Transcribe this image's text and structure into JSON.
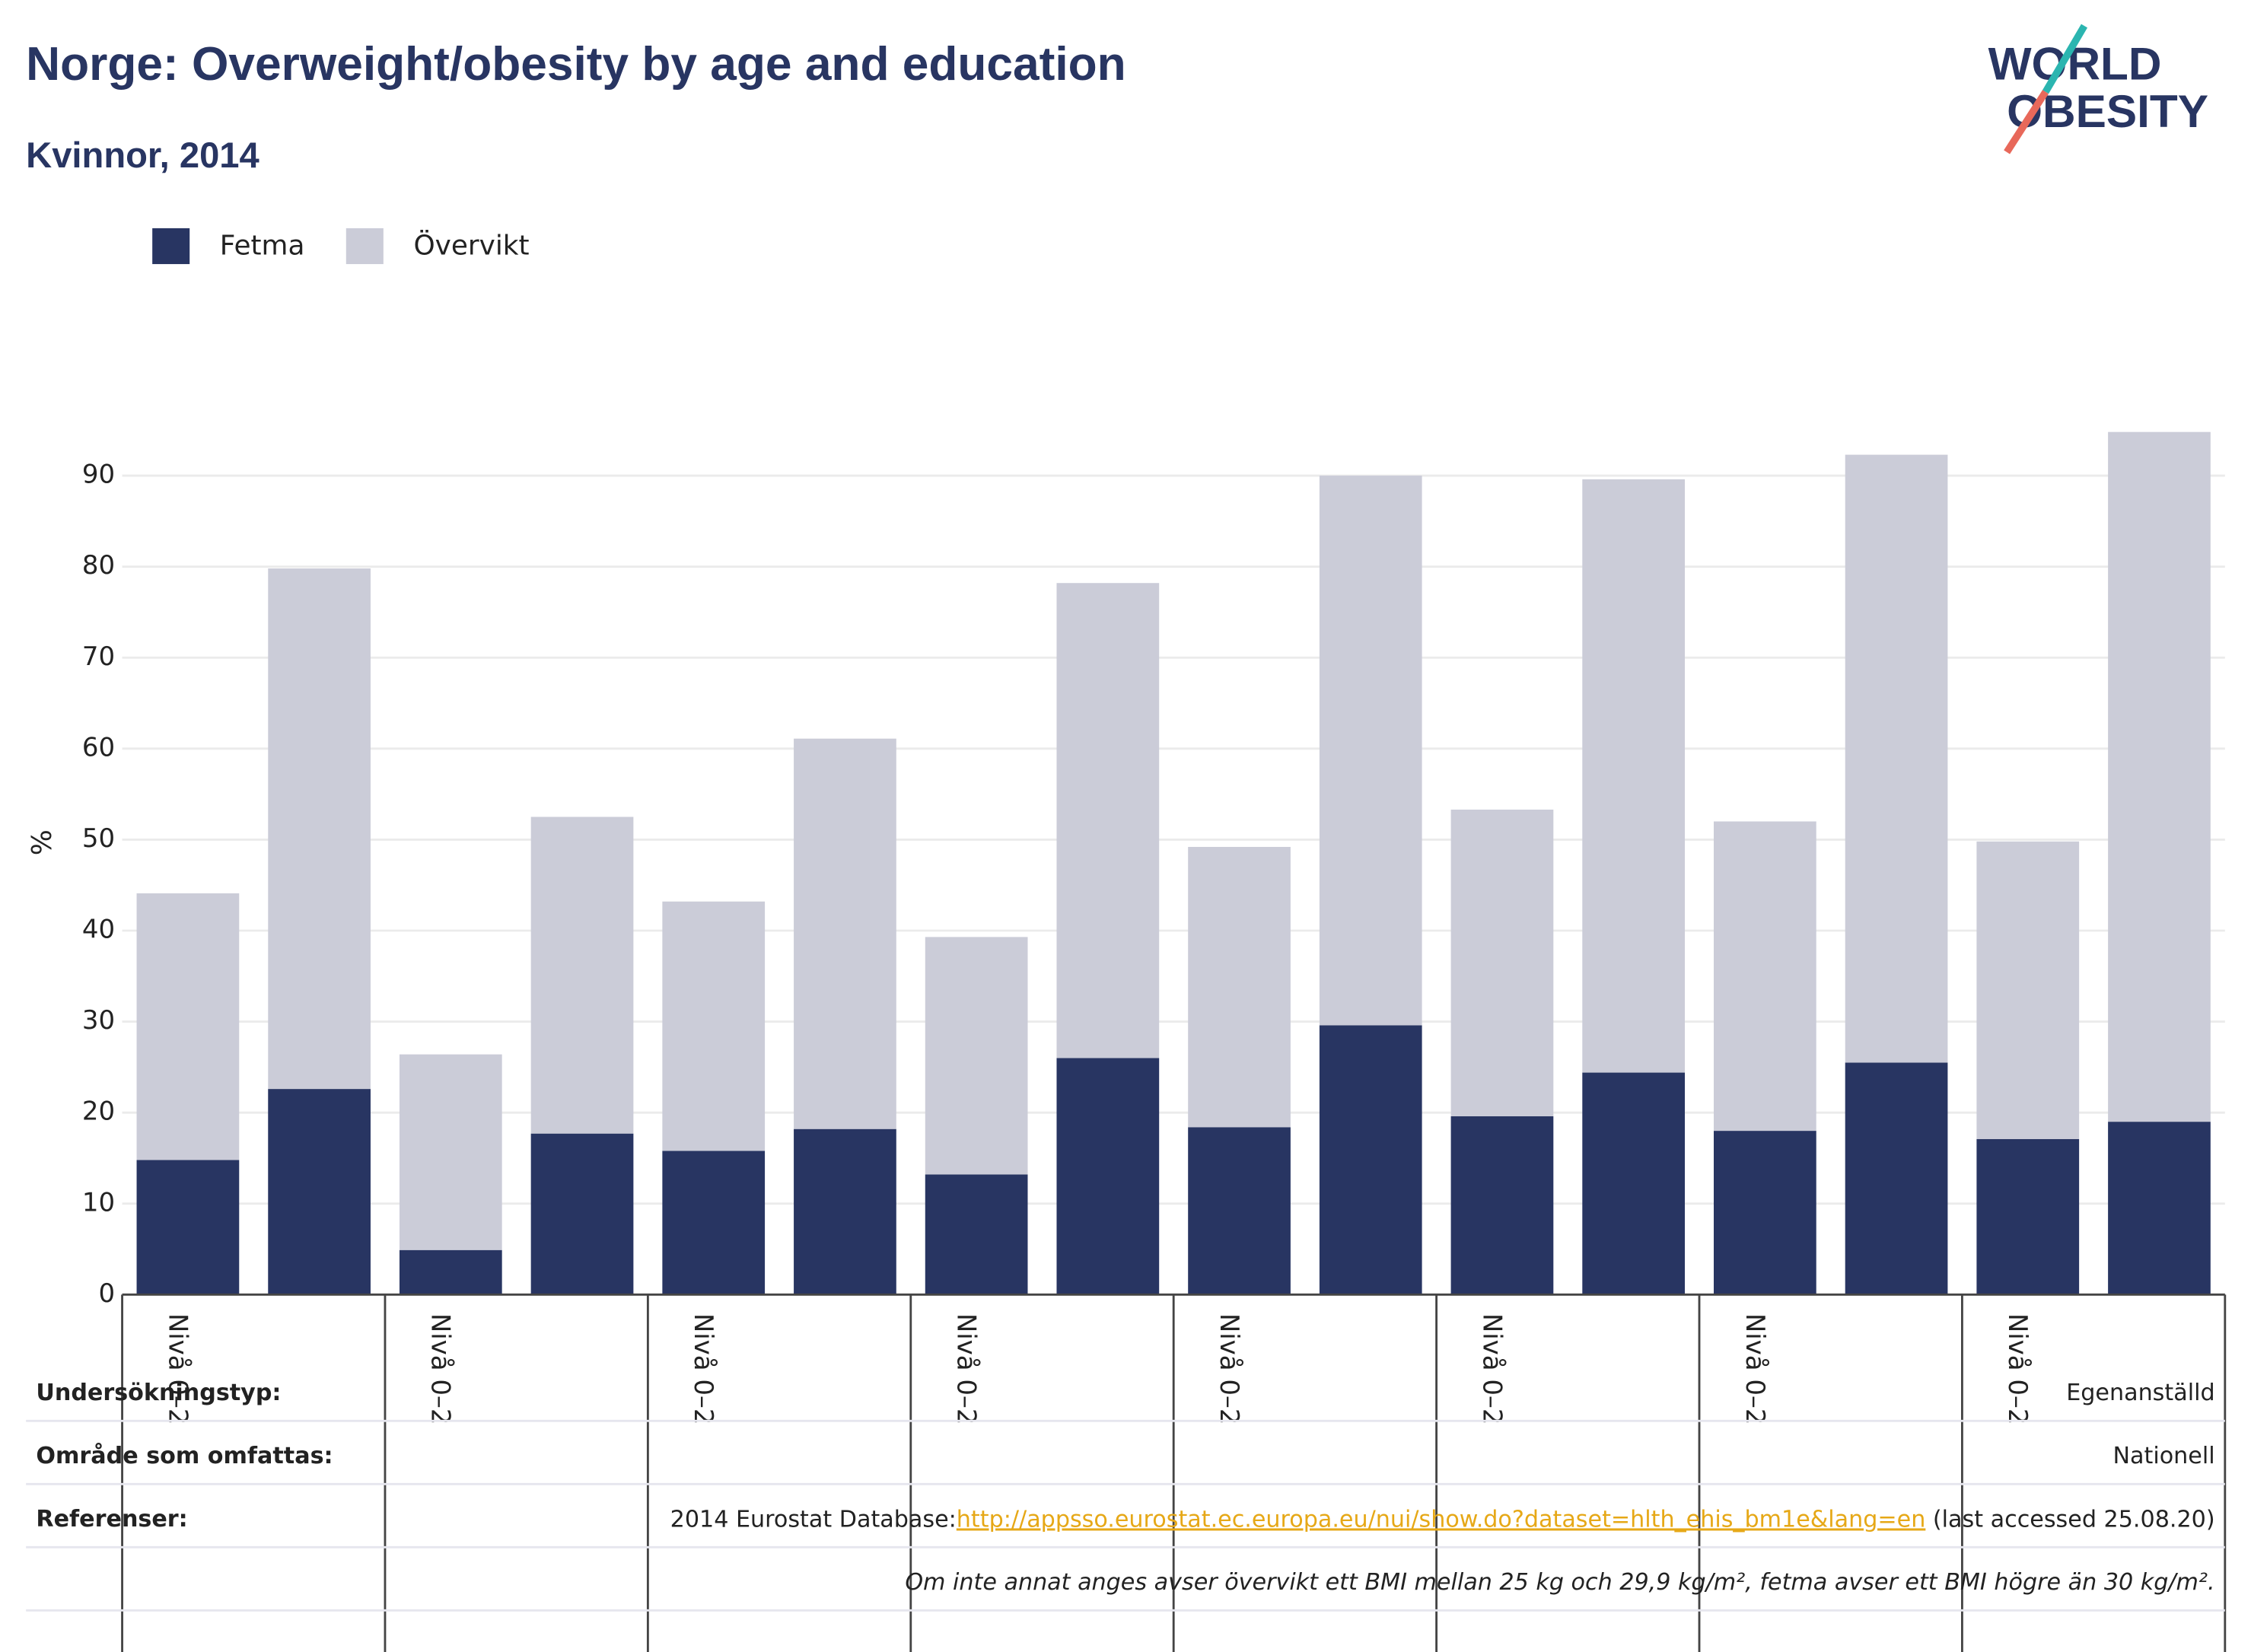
{
  "chart_data": {
    "type": "stacked_bar",
    "title": "Norge: Overweight/obesity by age and education",
    "subtitle": "Kvinnor, 2014",
    "y_label": "%",
    "categories": [
      "Nivå 0–2",
      null,
      "Nivå 0–2",
      null,
      "Nivå 0–2",
      null,
      "Nivå 0–2",
      null,
      "Nivå 0–2",
      null,
      "Nivå 0–2",
      null,
      "Nivå 0–2",
      null,
      "Nivå 0–2",
      null
    ],
    "series": [
      {
        "name": "Fetma",
        "color": "#283562",
        "values": [
          14.8,
          22.6,
          4.9,
          17.7,
          15.8,
          18.2,
          13.2,
          26.0,
          18.4,
          29.6,
          19.6,
          24.4,
          18.0,
          25.5,
          17.1,
          19.0
        ]
      },
      {
        "name": "Övervikt",
        "color": "#cbccd8",
        "values": [
          29.3,
          57.2,
          21.5,
          34.8,
          27.4,
          42.9,
          26.1,
          52.2,
          30.8,
          60.4,
          33.7,
          65.2,
          34.0,
          66.8,
          32.7,
          75.8
        ]
      }
    ],
    "ylim": [
      0,
      100
    ],
    "yticks": [
      0,
      10,
      20,
      30,
      40,
      50,
      60,
      70,
      80,
      90
    ],
    "grid": true,
    "legend": "top-left"
  },
  "logo": [
    "WORLD",
    "OBESITY"
  ],
  "info": {
    "rows": [
      [
        "Undersökningstyp:",
        "Egenanställd"
      ],
      [
        "Område som omfattas:",
        "Nationell"
      ]
    ],
    "reference": {
      "label": "Referenser:",
      "prefix": "2014 Eurostat Database:",
      "link": "http://appsso.eurostat.ec.europa.eu/nui/show.do?dataset=hlth_ehis_bm1e&lang=en",
      "suffix": " (last accessed 25.08.20)"
    },
    "note": "Om inte annat anges avser övervikt ett BMI mellan 25 kg och 29,9 kg/m², fetma avser ett BMI högre än 30 kg/m²."
  }
}
